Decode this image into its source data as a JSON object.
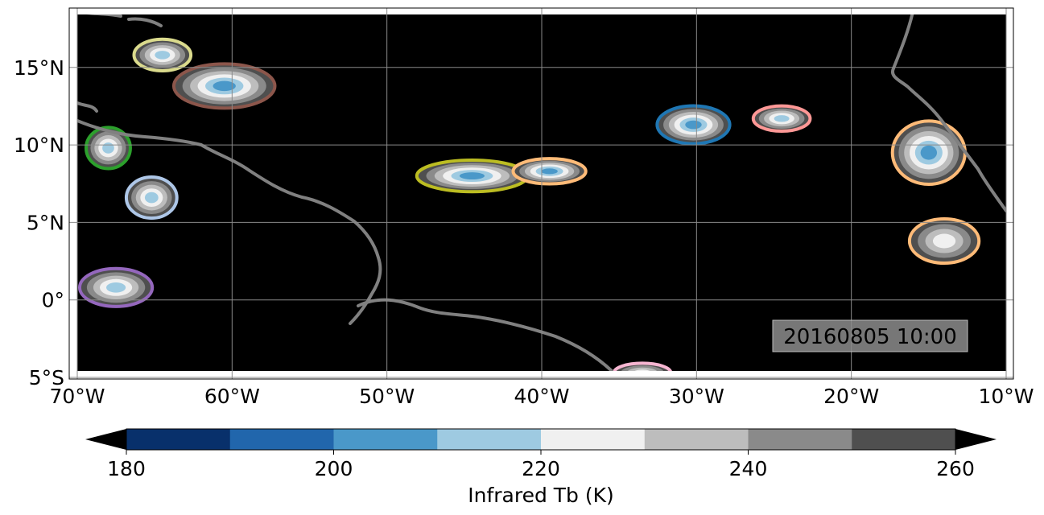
{
  "map": {
    "timestamp": "20160805 10:00",
    "lon_range": [
      -70,
      -10
    ],
    "lat_range": [
      -5,
      18
    ],
    "lon_ticks": [
      {
        "value": -70,
        "label": "70°W"
      },
      {
        "value": -60,
        "label": "60°W"
      },
      {
        "value": -50,
        "label": "50°W"
      },
      {
        "value": -40,
        "label": "40°W"
      },
      {
        "value": -30,
        "label": "30°W"
      },
      {
        "value": -20,
        "label": "20°W"
      },
      {
        "value": -10,
        "label": "10°W"
      }
    ],
    "lat_ticks": [
      {
        "value": 15,
        "label": "15°N"
      },
      {
        "value": 10,
        "label": "10°N"
      },
      {
        "value": 5,
        "label": "5°N"
      },
      {
        "value": 0,
        "label": "0°"
      },
      {
        "value": -5,
        "label": "5°S"
      }
    ],
    "background_color": "#000000",
    "coastline_color": "#808080",
    "grid": true
  },
  "colorbar": {
    "label": "Infrared Tb (K)",
    "range": [
      180,
      260
    ],
    "bins": [
      {
        "from": 180,
        "to": 190,
        "color": "#08306b"
      },
      {
        "from": 190,
        "to": 200,
        "color": "#2166ac"
      },
      {
        "from": 200,
        "to": 210,
        "color": "#4a98c9"
      },
      {
        "from": 210,
        "to": 220,
        "color": "#9ecae1"
      },
      {
        "from": 220,
        "to": 230,
        "color": "#f0f0f0"
      },
      {
        "from": 230,
        "to": 240,
        "color": "#bdbdbd"
      },
      {
        "from": 240,
        "to": 250,
        "color": "#8a8a8a"
      },
      {
        "from": 250,
        "to": 260,
        "color": "#4f4f4f"
      }
    ],
    "under_color": "#000000",
    "over_color": "#000000",
    "ticks": [
      "180",
      "200",
      "220",
      "240",
      "260"
    ]
  },
  "track_colors": [
    "#1f77b4",
    "#ff7f0e",
    "#2ca02c",
    "#d62728",
    "#9467bd",
    "#8c564b",
    "#e377c2",
    "#bcbd22",
    "#17becf",
    "#aec7e8",
    "#ffbb78",
    "#98df8a",
    "#ff9896",
    "#c5b0d5",
    "#c49c94",
    "#f7b6d2",
    "#dbdb8d",
    "#9edae5"
  ],
  "convective_systems": [
    {
      "id": "caribbean-north",
      "lon": -60.5,
      "lat": 13.8,
      "rx": 3.2,
      "ry": 1.4,
      "tb_min": 200,
      "outline": "#8c564b"
    },
    {
      "id": "caribbean-nw",
      "lon": -64.5,
      "lat": 15.8,
      "rx": 1.8,
      "ry": 1.0,
      "tb_min": 210,
      "outline": "#dbdb8d"
    },
    {
      "id": "caribbean-w",
      "lon": -68.0,
      "lat": 9.8,
      "rx": 1.4,
      "ry": 1.3,
      "tb_min": 210,
      "outline": "#2ca02c"
    },
    {
      "id": "venezuela",
      "lon": -65.2,
      "lat": 6.6,
      "rx": 1.6,
      "ry": 1.3,
      "tb_min": 210,
      "outline": "#aec7e8"
    },
    {
      "id": "equator-west",
      "lon": -67.5,
      "lat": 0.8,
      "rx": 2.3,
      "ry": 1.2,
      "tb_min": 210,
      "outline": "#9467bd"
    },
    {
      "id": "itcz-west",
      "lon": -44.5,
      "lat": 8.0,
      "rx": 3.5,
      "ry": 1.0,
      "tb_min": 200,
      "outline": "#bcbd22"
    },
    {
      "id": "itcz-mid",
      "lon": -39.5,
      "lat": 8.3,
      "rx": 2.3,
      "ry": 0.8,
      "tb_min": 200,
      "outline": "#ffbb78"
    },
    {
      "id": "itcz-east",
      "lon": -30.2,
      "lat": 11.3,
      "rx": 2.3,
      "ry": 1.2,
      "tb_min": 200,
      "outline": "#1f77b4"
    },
    {
      "id": "itcz-east2",
      "lon": -24.5,
      "lat": 11.7,
      "rx": 1.8,
      "ry": 0.8,
      "tb_min": 210,
      "outline": "#ff9896"
    },
    {
      "id": "africa-coast",
      "lon": -15.0,
      "lat": 9.5,
      "rx": 2.3,
      "ry": 2.0,
      "tb_min": 200,
      "outline": "#ffbb78"
    },
    {
      "id": "africa-south",
      "lon": -14.0,
      "lat": 3.8,
      "rx": 2.2,
      "ry": 1.4,
      "tb_min": 220,
      "outline": "#ffbb78"
    },
    {
      "id": "brazil-coast",
      "lon": -33.5,
      "lat": -4.7,
      "rx": 1.8,
      "ry": 0.6,
      "tb_min": 220,
      "outline": "#f7b6d2"
    }
  ]
}
